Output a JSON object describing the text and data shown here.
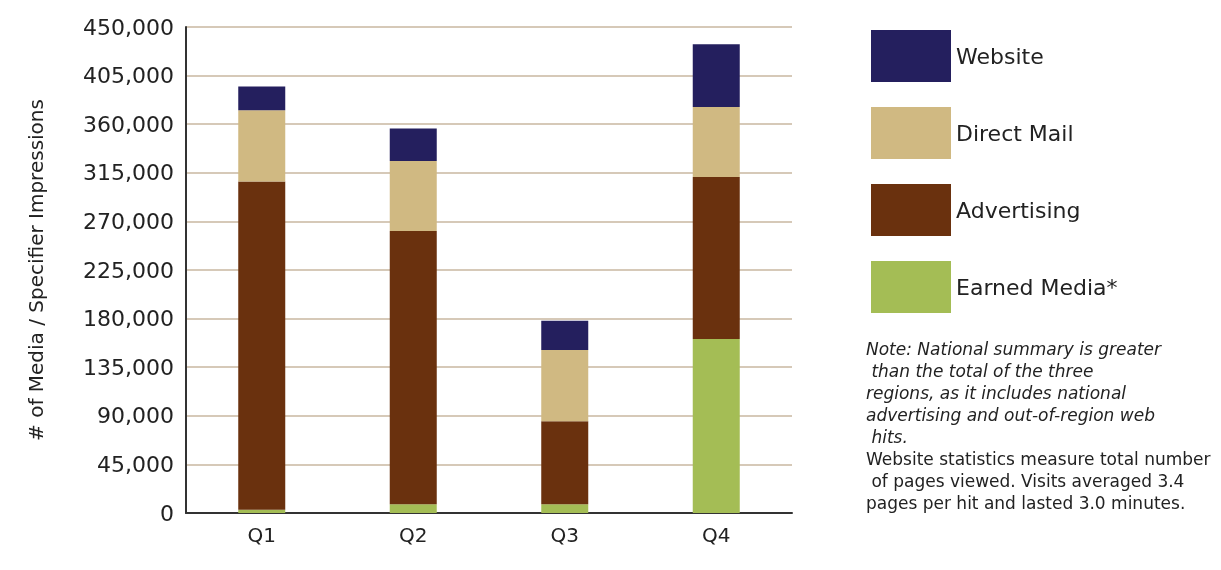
{
  "chart_data": {
    "type": "bar",
    "stacked": true,
    "ylabel": "# of Media / Specifier Impressions",
    "categories": [
      "Q1",
      "Q2",
      "Q3",
      "Q4"
    ],
    "series": [
      {
        "name": "Earned Media*",
        "color": "#a4bd55",
        "values": [
          3000,
          8000,
          8000,
          161000
        ]
      },
      {
        "name": "Advertising",
        "color": "#6a310e",
        "values": [
          304000,
          253000,
          77000,
          150000
        ]
      },
      {
        "name": "Direct Mail",
        "color": "#d0b982",
        "values": [
          66000,
          65000,
          66000,
          65000
        ]
      },
      {
        "name": "Website",
        "color": "#241f5e",
        "values": [
          22000,
          30000,
          27000,
          58000
        ]
      }
    ],
    "ylim": [
      0,
      450000
    ],
    "yticks": [
      0,
      {
        "value": 45000,
        "label": "45,000"
      },
      {
        "value": 90000,
        "label": "90,000"
      },
      {
        "value": 135000,
        "label": "135,000"
      },
      {
        "value": 180000,
        "label": "180,000"
      },
      {
        "value": 225000,
        "label": "225,000"
      },
      {
        "value": 270000,
        "label": "270,000"
      },
      {
        "value": 315000,
        "label": "315,000"
      },
      {
        "value": 360000,
        "label": "360,000"
      },
      {
        "value": 405000,
        "label": "405,000"
      },
      {
        "value": 450000,
        "label": "450,000"
      }
    ],
    "grid": "y",
    "legend": "right",
    "annotations": [
      "Note: National summary is greater than the total of the three regions, as it includes national advertising and out-of-region web hits.",
      "Website statistics measure total number of pages viewed. Visits averaged 3.4 pages per hit and lasted 3.0 minutes."
    ]
  }
}
